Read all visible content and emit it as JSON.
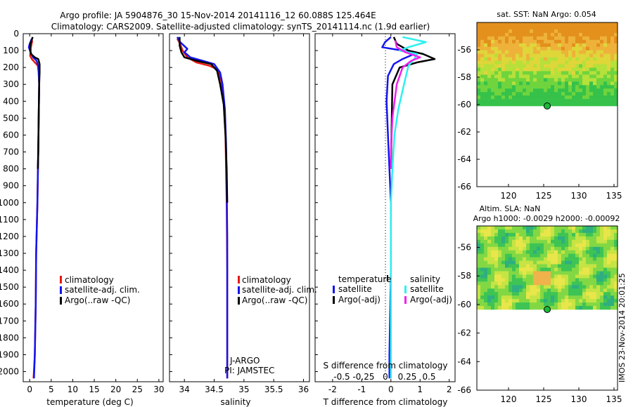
{
  "title": {
    "line1": "Argo profile: JA 5904876_30 15-Nov-2014 20141116_12 60.088S 125.464E",
    "line2": "Climatology: CARS2009. Satellite-adjusted climatology: synTS_20141114.nc (1.9d earlier)"
  },
  "colors": {
    "climatology": "#e8170f",
    "satellite": "#1414f0",
    "argo": "#000000",
    "satellite_s": "#2ef0f0",
    "argo_s": "#f020f0"
  },
  "chart_data": [
    {
      "type": "line",
      "id": "temperature",
      "xlabel": "temperature (deg C)",
      "ylabel": "",
      "xlim": [
        -1.5,
        31
      ],
      "ylim": [
        2060,
        0
      ],
      "xticks": [
        0,
        5,
        10,
        15,
        20,
        25,
        30
      ],
      "yticks": [
        0,
        100,
        200,
        300,
        400,
        500,
        600,
        700,
        800,
        900,
        1000,
        1100,
        1200,
        1300,
        1400,
        1500,
        1600,
        1700,
        1800,
        1900,
        2000
      ],
      "legend": [
        "climatology",
        "satellite-adj. clim.",
        "Argo(..raw -QC)"
      ],
      "series": [
        {
          "name": "climatology",
          "color": "#e8170f",
          "points": [
            [
              0.6,
              40
            ],
            [
              0.3,
              80
            ],
            [
              0.2,
              110
            ],
            [
              0.1,
              130
            ],
            [
              0.5,
              150
            ],
            [
              1.2,
              170
            ],
            [
              1.9,
              190
            ],
            [
              2.1,
              230
            ],
            [
              2.2,
              300
            ],
            [
              2.1,
              500
            ],
            [
              2.0,
              700
            ],
            [
              1.9,
              840
            ],
            [
              1.8,
              1000
            ],
            [
              1.5,
              1300
            ],
            [
              1.4,
              1600
            ],
            [
              1.2,
              1900
            ],
            [
              0.9,
              2040
            ]
          ]
        },
        {
          "name": "satellite-adj. clim.",
          "color": "#1414f0",
          "points": [
            [
              0.5,
              30
            ],
            [
              0.0,
              60
            ],
            [
              -0.2,
              80
            ],
            [
              0.2,
              110
            ],
            [
              0.8,
              140
            ],
            [
              1.6,
              160
            ],
            [
              2.0,
              190
            ],
            [
              2.1,
              230
            ],
            [
              2.2,
              300
            ],
            [
              2.1,
              500
            ],
            [
              2.0,
              700
            ],
            [
              1.9,
              840
            ],
            [
              1.8,
              1000
            ],
            [
              1.5,
              1300
            ],
            [
              1.4,
              1600
            ],
            [
              1.2,
              1900
            ],
            [
              1.0,
              2040
            ]
          ]
        },
        {
          "name": "Argo(..raw -QC)",
          "color": "#000000",
          "points": [
            [
              0.7,
              20
            ],
            [
              0.2,
              60
            ],
            [
              0.1,
              90
            ],
            [
              0.3,
              120
            ],
            [
              1.2,
              140
            ],
            [
              2.0,
              150
            ],
            [
              2.3,
              180
            ],
            [
              2.3,
              230
            ],
            [
              2.2,
              300
            ],
            [
              2.1,
              500
            ],
            [
              2.0,
              700
            ],
            [
              1.9,
              800
            ]
          ]
        }
      ]
    },
    {
      "type": "line",
      "id": "salinity",
      "xlabel": "salinity",
      "xlim": [
        33.75,
        36.1
      ],
      "ylim": [
        2060,
        0
      ],
      "xticks": [
        34,
        34.5,
        35,
        35.5,
        36
      ],
      "xticklabels": [
        "34",
        "34.5",
        "35",
        "35.5",
        "36"
      ],
      "legend": [
        "climatology",
        "satellite-adj. clim.",
        "Argo(..raw -QC)"
      ],
      "annotation": [
        "J-ARGO",
        "PI: JAMSTEC"
      ],
      "series": [
        {
          "name": "climatology",
          "color": "#e8170f",
          "points": [
            [
              33.88,
              30
            ],
            [
              33.93,
              60
            ],
            [
              33.97,
              100
            ],
            [
              34.05,
              140
            ],
            [
              34.2,
              170
            ],
            [
              34.42,
              190
            ],
            [
              34.55,
              210
            ],
            [
              34.62,
              280
            ],
            [
              34.66,
              400
            ],
            [
              34.69,
              600
            ],
            [
              34.7,
              800
            ],
            [
              34.71,
              1000
            ],
            [
              34.72,
              1400
            ],
            [
              34.72,
              2040
            ]
          ]
        },
        {
          "name": "satellite-adj. clim.",
          "color": "#1414f0",
          "points": [
            [
              33.88,
              20
            ],
            [
              33.93,
              50
            ],
            [
              34.05,
              90
            ],
            [
              34.0,
              110
            ],
            [
              34.1,
              140
            ],
            [
              34.3,
              160
            ],
            [
              34.5,
              180
            ],
            [
              34.6,
              230
            ],
            [
              34.64,
              300
            ],
            [
              34.68,
              450
            ],
            [
              34.7,
              650
            ],
            [
              34.71,
              900
            ],
            [
              34.72,
              1200
            ],
            [
              34.72,
              1600
            ],
            [
              34.72,
              2040
            ]
          ]
        },
        {
          "name": "Argo(..raw -QC)",
          "color": "#000000",
          "points": [
            [
              33.92,
              20
            ],
            [
              33.92,
              70
            ],
            [
              33.95,
              110
            ],
            [
              34.0,
              140
            ],
            [
              34.2,
              160
            ],
            [
              34.45,
              180
            ],
            [
              34.55,
              220
            ],
            [
              34.6,
              300
            ],
            [
              34.66,
              420
            ],
            [
              34.69,
              600
            ],
            [
              34.71,
              800
            ],
            [
              34.72,
              1000
            ]
          ]
        }
      ]
    },
    {
      "type": "line",
      "id": "difference",
      "xlabel": "T difference from climatology",
      "top_label": "S difference from climatology",
      "xlim": [
        -2.6,
        2.2
      ],
      "ylim": [
        2060,
        0
      ],
      "xticks": [
        -2,
        -1,
        0,
        1,
        2
      ],
      "sticks": [
        -0.5,
        -0.25,
        0,
        0.25,
        0.5
      ],
      "sticklabels": [
        "-0.5",
        "-0.25",
        "0",
        "0.25",
        "0.5"
      ],
      "legend_headers": [
        "temperature",
        "salinity"
      ],
      "legend": [
        "satellite",
        "Argo(-adj)",
        "satellite",
        "Argo(-adj)"
      ],
      "series": [
        {
          "name": "satellite T",
          "color": "#1414f0",
          "points": [
            [
              0,
              20
            ],
            [
              -0.2,
              50
            ],
            [
              -0.3,
              80
            ],
            [
              0.4,
              100
            ],
            [
              0.8,
              120
            ],
            [
              0.4,
              150
            ],
            [
              0.1,
              180
            ],
            [
              -0.1,
              250
            ],
            [
              -0.15,
              400
            ],
            [
              -0.1,
              600
            ],
            [
              -0.05,
              800
            ],
            [
              0,
              1000
            ],
            [
              0,
              1400
            ],
            [
              -0.05,
              1900
            ],
            [
              -0.05,
              2040
            ]
          ]
        },
        {
          "name": "Argo T",
          "color": "#000000",
          "points": [
            [
              0.1,
              20
            ],
            [
              0.2,
              60
            ],
            [
              0.6,
              100
            ],
            [
              1.1,
              120
            ],
            [
              1.5,
              150
            ],
            [
              0.9,
              170
            ],
            [
              0.3,
              200
            ],
            [
              0.05,
              300
            ],
            [
              0.02,
              600
            ],
            [
              0,
              800
            ]
          ]
        },
        {
          "name": "satellite S",
          "color": "#2ef0f0",
          "points": [
            [
              0.4,
              20
            ],
            [
              1.2,
              50
            ],
            [
              0.6,
              80
            ],
            [
              0.3,
              100
            ],
            [
              0.9,
              120
            ],
            [
              0.8,
              150
            ],
            [
              0.6,
              190
            ],
            [
              0.45,
              300
            ],
            [
              0.25,
              450
            ],
            [
              0.12,
              600
            ],
            [
              0.05,
              800
            ],
            [
              0,
              1000
            ],
            [
              0,
              1400
            ],
            [
              0,
              1900
            ],
            [
              0,
              2040
            ]
          ]
        },
        {
          "name": "Argo S",
          "color": "#f020f0",
          "points": [
            [
              0.15,
              40
            ],
            [
              0.2,
              80
            ],
            [
              0.5,
              110
            ],
            [
              1.0,
              140
            ],
            [
              0.7,
              160
            ],
            [
              0.4,
              200
            ],
            [
              0.2,
              300
            ],
            [
              0.05,
              500
            ],
            [
              0,
              700
            ],
            [
              0,
              800
            ]
          ]
        }
      ]
    },
    {
      "type": "heatmap",
      "id": "sst-map",
      "title": "sat. SST: NaN Argo: 0.054",
      "xlim": [
        115.5,
        135.5
      ],
      "ylim": [
        -66,
        -54
      ],
      "xticks": [
        120,
        125,
        130,
        135
      ],
      "yticks": [
        -56,
        -58,
        -60,
        -62,
        -64,
        -66
      ],
      "marker": [
        125.464,
        -60.088
      ]
    },
    {
      "type": "heatmap",
      "id": "sla-map",
      "title": "Altim. SLA: NaN",
      "subtitle": "Argo h1000: -0.0029 h2000: -0.00092",
      "xlim": [
        115.5,
        135.5
      ],
      "ylim": [
        -66,
        -54.5
      ],
      "xticks": [
        120,
        125,
        130,
        135
      ],
      "yticks": [
        -56,
        -58,
        -60,
        -62,
        -64,
        -66
      ],
      "marker": [
        125.464,
        -60.088
      ]
    }
  ],
  "watermark": "IMOS 23-Nov-2014 20:01:25"
}
